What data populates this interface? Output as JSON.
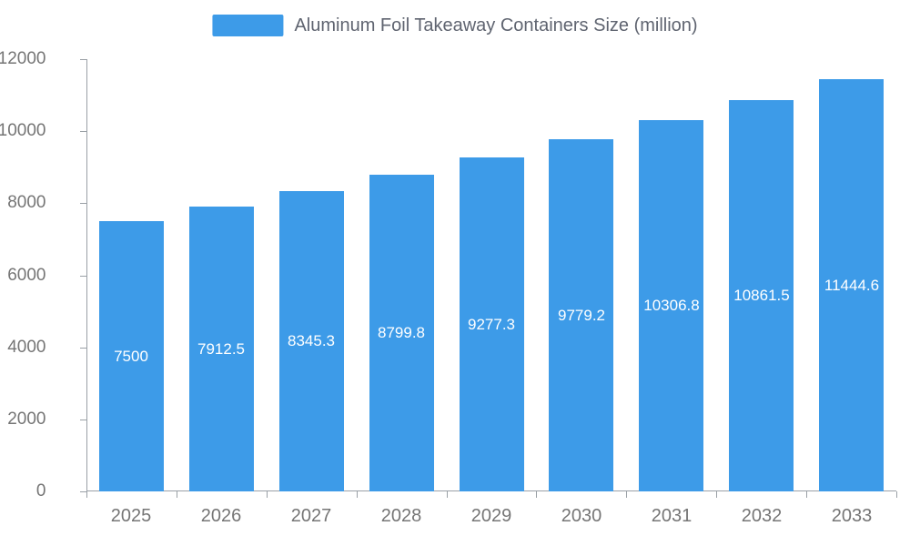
{
  "chart_data": {
    "type": "bar",
    "title": "Aluminum Foil Takeaway Containers Size (million)",
    "categories": [
      "2025",
      "2026",
      "2027",
      "2028",
      "2029",
      "2030",
      "2031",
      "2032",
      "2033"
    ],
    "values": [
      7500,
      7912.5,
      8345.3,
      8799.8,
      9277.3,
      9779.2,
      10306.8,
      10861.5,
      11444.6
    ],
    "value_labels": [
      "7500",
      "7912.5",
      "8345.3",
      "8799.8",
      "9277.3",
      "9779.2",
      "10306.8",
      "10861.5",
      "11444.6"
    ],
    "xlabel": "",
    "ylabel": "",
    "ylim": [
      0,
      12000
    ],
    "yticks": [
      0,
      2000,
      4000,
      6000,
      8000,
      10000,
      12000
    ],
    "legend_position": "top",
    "grid": false,
    "bar_color": "#3D9BE8",
    "bar_label_color": "#ffffff",
    "axis_text_color": "#757575"
  }
}
